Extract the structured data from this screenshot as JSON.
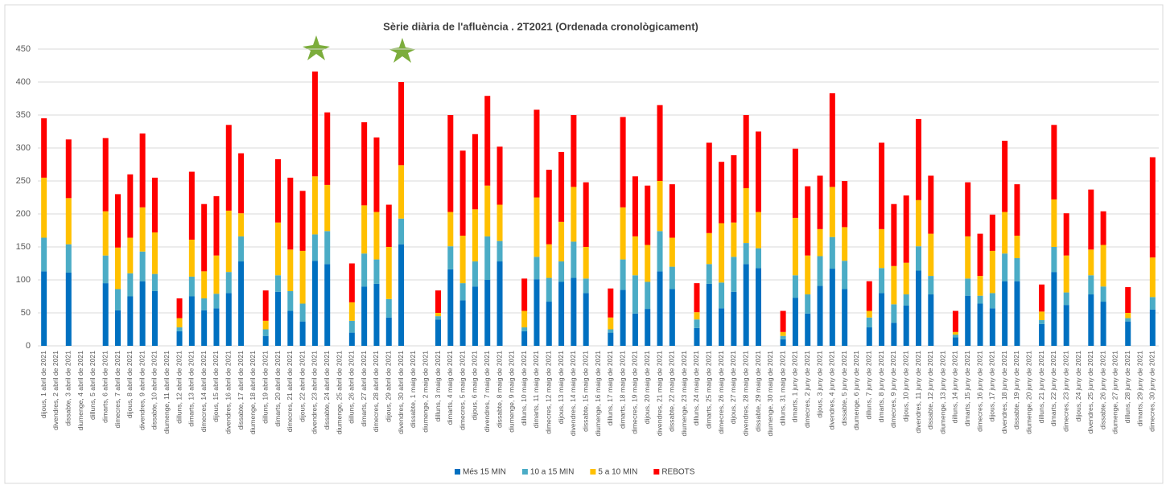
{
  "chart_data": {
    "type": "stacked_bar",
    "title": "Sèrie diària de l'afluència . 2T2021 (Ordenada cronològicament)",
    "categories": [
      "dijous, 1 abril de 2021",
      "divendres, 2 abril de 2021",
      "dissabte, 3 abril de 2021",
      "diumenge, 4 abril de 2021",
      "dilluns, 5 abril de 2021",
      "dimarts, 6 abril de 2021",
      "dimecres, 7 abril de 2021",
      "dijous, 8 abril de 2021",
      "divendres, 9 abril de 2021",
      "dissabte, 10 abril de 2021",
      "diumenge, 11 abril de 2021",
      "dilluns, 12 abril de 2021",
      "dimarts, 13 abril de 2021",
      "dimecres, 14 abril de 2021",
      "dijous, 15 abril de 2021",
      "divendres, 16 abril de 2021",
      "dissabte, 17 abril de 2021",
      "diumenge, 18 abril de 2021",
      "dilluns, 19 abril de 2021",
      "dimarts, 20 abril de 2021",
      "dimecres, 21 abril de 2021",
      "dijous, 22 abril de 2021",
      "divendres, 23 abril de 2021",
      "dissabte, 24 abril de 2021",
      "diumenge, 25 abril de 2021",
      "dilluns, 26 abril de 2021",
      "dimarts, 27 abril de 2021",
      "dimecres, 28 abril de 2021",
      "dijous, 29 abril de 2021",
      "divendres, 30 abril de 2021",
      "dissabte, 1 maig de 2021",
      "diumenge, 2 maig de 2021",
      "dilluns, 3 maig de 2021",
      "dimarts, 4 maig de 2021",
      "dimecres, 5 maig de 2021",
      "dijous, 6 maig de 2021",
      "divendres, 7 maig de 2021",
      "dissabte, 8 maig de 2021",
      "diumenge, 9 maig de 2021",
      "dilluns, 10 maig de 2021",
      "dimarts, 11 maig de 2021",
      "dimecres, 12 maig de 2021",
      "dijous, 13 maig de 2021",
      "divendres, 14 maig de 2021",
      "dissabte, 15 maig de 2021",
      "diumenge, 16 maig de 2021",
      "dilluns, 17 maig de 2021",
      "dimarts, 18 maig de 2021",
      "dimecres, 19 maig de 2021",
      "dijous, 20 maig de 2021",
      "divendres, 21 maig de 2021",
      "dissabte, 22 maig de 2021",
      "diumenge, 23 maig de 2021",
      "dilluns, 24 maig de 2021",
      "dimarts, 25 maig de 2021",
      "dimecres, 26 maig de 2021",
      "dijous, 27 maig de 2021",
      "divendres, 28 maig de 2021",
      "dissabte, 29 maig de 2021",
      "diumenge, 30 maig de 2021",
      "dilluns, 31 maig de 2021",
      "dimarts, 1 juny de 2021",
      "dimecres, 2 juny de 2021",
      "dijous, 3 juny de 2021",
      "divendres, 4 juny de 2021",
      "dissabte, 5 juny de 2021",
      "diumenge, 6 juny de 2021",
      "dilluns, 7 juny de 2021",
      "dimarts, 8 juny de 2021",
      "dimecres, 9 juny de 2021",
      "dijous, 10 juny de 2021",
      "divendres, 11 juny de 2021",
      "dissabte, 12 juny de 2021",
      "diumenge, 13 juny de 2021",
      "dilluns, 14 juny de 2021",
      "dimarts, 15 juny de 2021",
      "dimecres, 16 juny de 2021",
      "dijous, 17 juny de 2021",
      "divendres, 18 juny de 2021",
      "dissabte, 19 juny de 2021",
      "diumenge, 20 juny de 2021",
      "dilluns, 21 juny de 2021",
      "dimarts, 22 juny de 2021",
      "dimecres, 23 juny de 2021",
      "dijous, 24 juny de 2021",
      "divendres, 25 juny de 2021",
      "dissabte, 26 juny de 2021",
      "diumenge, 27 juny de 2021",
      "dilluns, 28 juny de 2021",
      "dimarts, 29 juny de 2021",
      "dimecres, 30 juny de 2021"
    ],
    "series": [
      {
        "name": "Més 15 MIN",
        "color": "#0070c0",
        "values": [
          113,
          0,
          111,
          0,
          0,
          95,
          54,
          75,
          98,
          83,
          0,
          22,
          75,
          54,
          57,
          80,
          128,
          0,
          15,
          82,
          53,
          37,
          129,
          124,
          0,
          20,
          90,
          94,
          43,
          154,
          0,
          0,
          40,
          116,
          69,
          90,
          100,
          128,
          0,
          22,
          101,
          67,
          97,
          103,
          80,
          0,
          20,
          85,
          49,
          56,
          113,
          86,
          0,
          27,
          94,
          57,
          82,
          124,
          118,
          0,
          10,
          73,
          49,
          91,
          117,
          86,
          0,
          28,
          80,
          35,
          61,
          114,
          78,
          0,
          13,
          76,
          64,
          57,
          98,
          98,
          0,
          33,
          112,
          62,
          0,
          78,
          67,
          0,
          37,
          0,
          55
        ]
      },
      {
        "name": "10 a 15 MIN",
        "color": "#4bacc6",
        "values": [
          51,
          0,
          43,
          0,
          0,
          42,
          32,
          35,
          45,
          26,
          0,
          6,
          30,
          18,
          22,
          32,
          38,
          0,
          10,
          25,
          30,
          27,
          40,
          50,
          0,
          18,
          50,
          37,
          28,
          39,
          0,
          0,
          5,
          35,
          26,
          38,
          66,
          31,
          0,
          6,
          34,
          36,
          31,
          55,
          22,
          0,
          5,
          46,
          58,
          41,
          61,
          34,
          0,
          13,
          30,
          39,
          53,
          32,
          30,
          0,
          5,
          34,
          29,
          45,
          48,
          43,
          0,
          15,
          38,
          28,
          17,
          37,
          28,
          0,
          4,
          26,
          12,
          23,
          42,
          35,
          0,
          6,
          38,
          19,
          0,
          29,
          23,
          0,
          5,
          0,
          19
        ]
      },
      {
        "name": "5 a 10 MIN",
        "color": "#ffc000",
        "values": [
          91,
          0,
          70,
          0,
          0,
          67,
          63,
          54,
          67,
          63,
          0,
          14,
          56,
          41,
          58,
          93,
          35,
          0,
          13,
          80,
          63,
          80,
          88,
          70,
          0,
          28,
          73,
          72,
          79,
          81,
          0,
          0,
          5,
          52,
          72,
          79,
          77,
          55,
          0,
          25,
          90,
          51,
          60,
          83,
          48,
          0,
          18,
          79,
          59,
          56,
          76,
          44,
          0,
          11,
          47,
          90,
          52,
          83,
          55,
          0,
          6,
          87,
          59,
          41,
          76,
          51,
          0,
          10,
          59,
          58,
          48,
          70,
          64,
          0,
          4,
          64,
          30,
          64,
          63,
          34,
          0,
          13,
          72,
          56,
          0,
          39,
          63,
          0,
          8,
          0,
          60
        ]
      },
      {
        "name": "REBOTS",
        "color": "#ff0000",
        "values": [
          90,
          0,
          89,
          0,
          0,
          111,
          81,
          96,
          112,
          83,
          0,
          30,
          103,
          102,
          90,
          130,
          91,
          0,
          46,
          96,
          109,
          91,
          159,
          110,
          0,
          59,
          126,
          113,
          64,
          126,
          0,
          0,
          34,
          147,
          129,
          114,
          136,
          88,
          0,
          49,
          133,
          113,
          106,
          109,
          98,
          0,
          44,
          137,
          91,
          90,
          115,
          81,
          0,
          44,
          137,
          93,
          102,
          111,
          122,
          0,
          32,
          105,
          105,
          81,
          142,
          70,
          0,
          45,
          131,
          94,
          102,
          123,
          88,
          0,
          32,
          82,
          64,
          55,
          108,
          78,
          0,
          41,
          113,
          64,
          0,
          91,
          51,
          0,
          39,
          0,
          152
        ]
      }
    ],
    "ylim": [
      0,
      450
    ],
    "yticks": [
      0,
      50,
      100,
      150,
      200,
      250,
      300,
      350,
      400,
      450
    ],
    "grid": true
  }
}
